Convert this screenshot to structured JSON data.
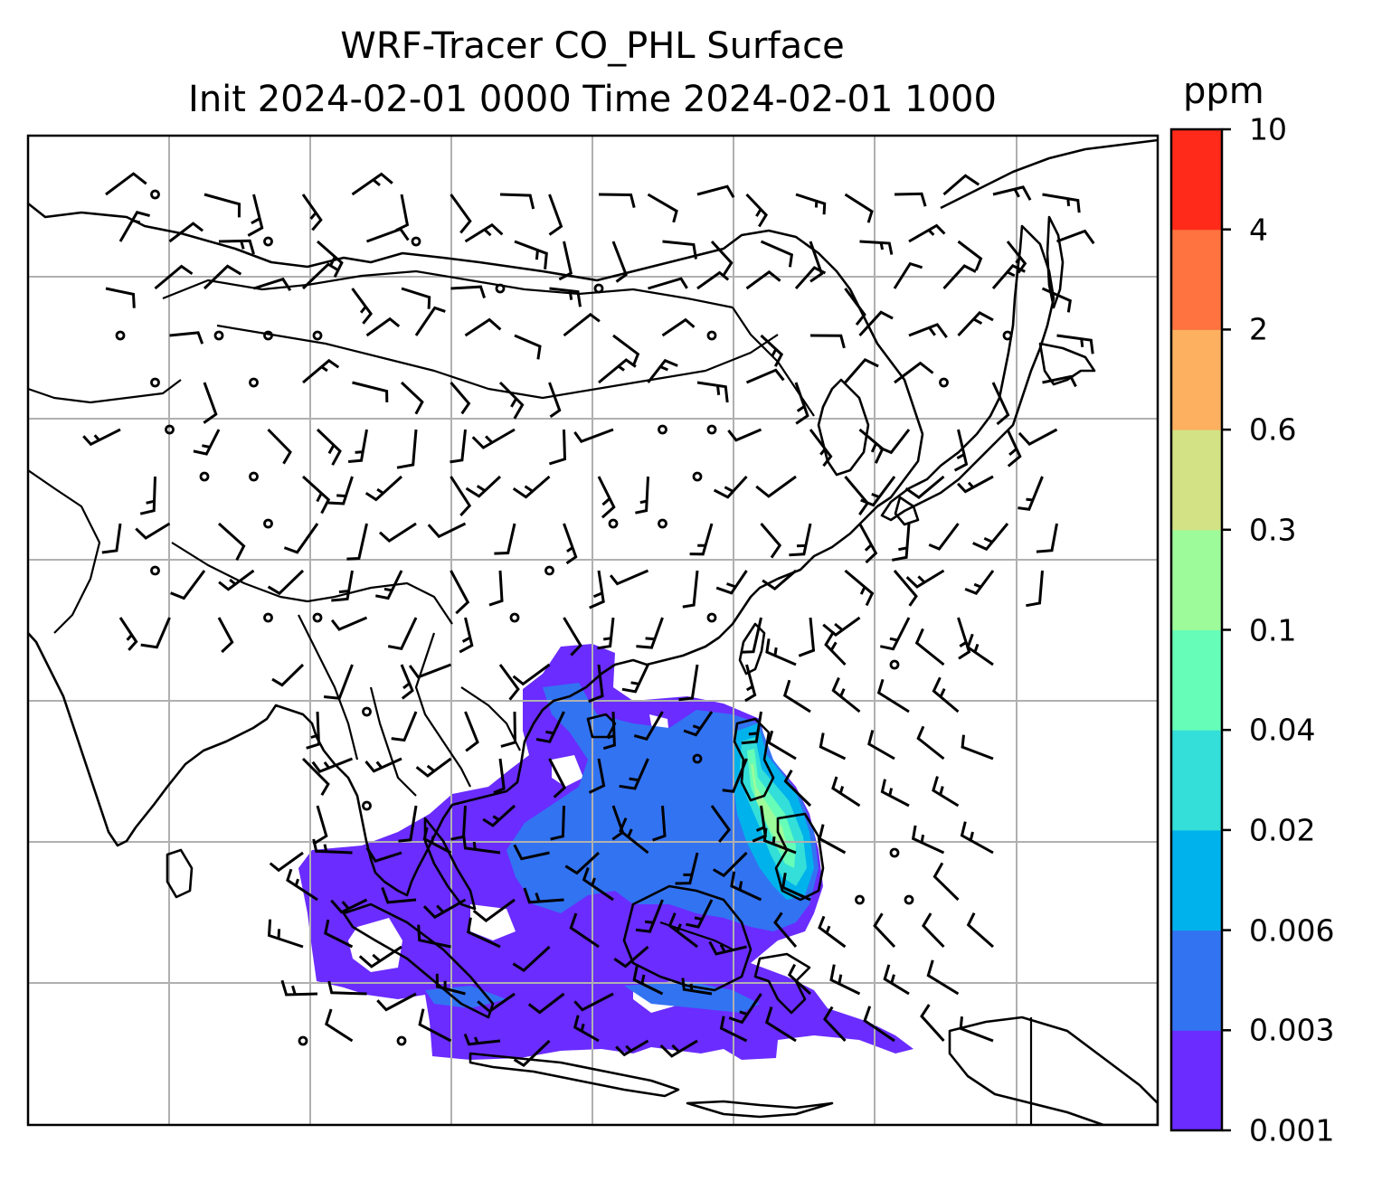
{
  "title": {
    "line1": "WRF-Tracer CO_PHL Surface",
    "line2": "Init 2024-02-01 0000 Time 2024-02-01 1000"
  },
  "colorbar": {
    "unit": "ppm",
    "levels": [
      "0.001",
      "0.003",
      "0.006",
      "0.02",
      "0.04",
      "0.1",
      "0.3",
      "0.6",
      "2",
      "4",
      "10"
    ],
    "colors": [
      "#6a2cff",
      "#3273f2",
      "#00b2eb",
      "#33dfd8",
      "#66fdb8",
      "#9efb9a",
      "#d2e285",
      "#fcb060",
      "#fe7340",
      "#ff2a1a"
    ]
  },
  "map": {
    "region": "East and Southeast Asia",
    "tracer": "CO_PHL",
    "level": "Surface",
    "gridlines": true,
    "overlay": "wind barbs"
  }
}
